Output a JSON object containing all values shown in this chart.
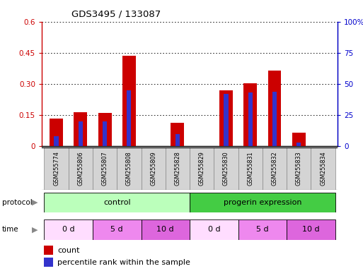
{
  "title": "GDS3495 / 133087",
  "samples": [
    "GSM255774",
    "GSM255806",
    "GSM255807",
    "GSM255808",
    "GSM255809",
    "GSM255828",
    "GSM255829",
    "GSM255830",
    "GSM255831",
    "GSM255832",
    "GSM255833",
    "GSM255834"
  ],
  "count_values": [
    0.135,
    0.165,
    0.16,
    0.435,
    0.0,
    0.115,
    0.0,
    0.27,
    0.305,
    0.365,
    0.065,
    0.0
  ],
  "percentile_values": [
    8.0,
    20.0,
    20.0,
    45.0,
    0.0,
    10.0,
    0.0,
    42.0,
    43.0,
    44.0,
    3.0,
    0.0
  ],
  "ylim_left": [
    0,
    0.6
  ],
  "ylim_right": [
    0,
    100
  ],
  "yticks_left": [
    0,
    0.15,
    0.3,
    0.45,
    0.6
  ],
  "ytick_labels_left": [
    "0",
    "0.15",
    "0.30",
    "0.45",
    "0.6"
  ],
  "yticks_right": [
    0,
    25,
    50,
    75,
    100
  ],
  "ytick_labels_right": [
    "0",
    "25",
    "50",
    "75",
    "100%"
  ],
  "bar_color": "#cc0000",
  "percentile_color": "#3333cc",
  "bar_width": 0.55,
  "percentile_bar_width": 0.18,
  "protocol_groups": [
    {
      "label": "control",
      "start": 0,
      "end": 6,
      "color": "#bbffbb"
    },
    {
      "label": "progerin expression",
      "start": 6,
      "end": 12,
      "color": "#44cc44"
    }
  ],
  "time_groups": [
    {
      "label": "0 d",
      "start": 0,
      "end": 2,
      "color": "#ffddff"
    },
    {
      "label": "5 d",
      "start": 2,
      "end": 4,
      "color": "#ee88ee"
    },
    {
      "label": "10 d",
      "start": 4,
      "end": 6,
      "color": "#dd66dd"
    },
    {
      "label": "0 d",
      "start": 6,
      "end": 8,
      "color": "#ffddff"
    },
    {
      "label": "5 d",
      "start": 8,
      "end": 10,
      "color": "#ee88ee"
    },
    {
      "label": "10 d",
      "start": 10,
      "end": 12,
      "color": "#dd66dd"
    }
  ],
  "legend_count_label": "count",
  "legend_percentile_label": "percentile rank within the sample",
  "axis_label_color_left": "#cc0000",
  "axis_label_color_right": "#0000cc",
  "sample_box_color": "#d4d4d4",
  "sample_box_edge": "#888888"
}
